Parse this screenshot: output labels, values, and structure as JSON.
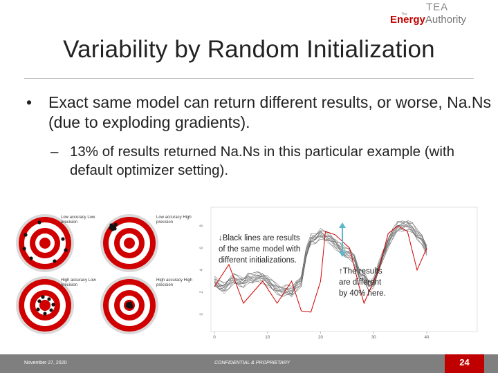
{
  "logo": {
    "tea": "TEA",
    "the": "The",
    "energy": "Energy",
    "authority": "Authority"
  },
  "title": "Variability by Random Initialization",
  "bullets": [
    {
      "text": "Exact same model can return different results, or worse, Na.Ns (due to exploding gradients).",
      "sub": [
        "13% of results returned Na.Ns in this particular example (with default optimizer setting)."
      ]
    }
  ],
  "targets": [
    {
      "label": "Low accuracy Low precision"
    },
    {
      "label": "Low accuracy High precision"
    },
    {
      "label": "High accuracy Low precision"
    },
    {
      "label": "High accuracy High precision"
    }
  ],
  "plot": {
    "xticks": [
      0,
      10,
      20,
      30,
      40
    ],
    "yticks": [
      0,
      2,
      4,
      6,
      8
    ],
    "note_left": "↓Black lines are results of the same model with different initializations.",
    "note_right": "↑The results are different by 40% here."
  },
  "footer": {
    "date": "November 27, 2020",
    "confidential": "CONFIDENTIAL & PROPRIETARY",
    "page": "24"
  }
}
